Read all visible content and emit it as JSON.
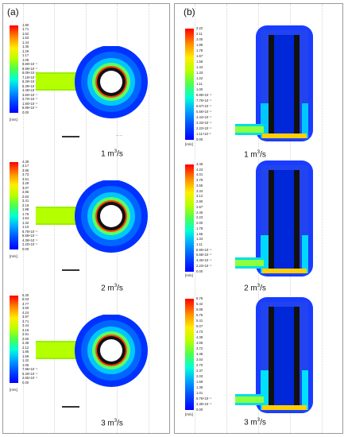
{
  "panels": {
    "a": {
      "label": "(a)",
      "cases": [
        {
          "caption_prefix": "1 m",
          "caption_exp": "3",
          "caption_suffix": "/s",
          "unit": "[m/s]",
          "ticks": [
            "1.80",
            "1.71",
            "1.62",
            "1.53",
            "1.44",
            "1.35",
            "1.26",
            "1.17",
            "1.08",
            "9.89×10⁻¹",
            "8.99×10⁻¹",
            "8.09×10⁻¹",
            "7.19×10⁻¹",
            "6.29×10⁻¹",
            "5.39×10⁻¹",
            "4.49×10⁻¹",
            "3.60×10⁻¹",
            "2.70×10⁻¹",
            "1.80×10⁻¹",
            "8.99×10⁻²",
            "0.00"
          ]
        },
        {
          "caption_prefix": "2 m",
          "caption_exp": "3",
          "caption_suffix": "/s",
          "unit": "[m/s]",
          "ticks": [
            "4.39",
            "4.17",
            "3.95",
            "3.73",
            "3.51",
            "3.29",
            "3.07",
            "2.85",
            "2.63",
            "2.41",
            "2.19",
            "1.98",
            "1.76",
            "1.54",
            "1.32",
            "1.10",
            "8.78×10⁻¹",
            "6.59×10⁻¹",
            "4.39×10⁻¹",
            "2.20×10⁻¹",
            "0.00"
          ]
        },
        {
          "caption_prefix": "3 m",
          "caption_exp": "3",
          "caption_suffix": "/s",
          "unit": "[m/s]",
          "ticks": [
            "5.30",
            "5.03",
            "4.77",
            "4.50",
            "4.24",
            "3.97",
            "3.71",
            "3.44",
            "3.18",
            "2.91",
            "2.65",
            "2.38",
            "2.12",
            "1.85",
            "1.59",
            "1.32",
            "1.06",
            "7.95×10⁻¹",
            "5.30×10⁻¹",
            "2.65×10⁻¹",
            "0.00"
          ]
        }
      ]
    },
    "b": {
      "label": "(b)",
      "cases": [
        {
          "caption_prefix": "1 m",
          "caption_exp": "3",
          "caption_suffix": "/s",
          "unit": "[m/s]",
          "ticks": [
            "2.22",
            "2.11",
            "2.00",
            "1.89",
            "1.78",
            "1.67",
            "1.56",
            "1.44",
            "1.33",
            "1.22",
            "1.11",
            "1.00",
            "8.89×10⁻¹",
            "7.78×10⁻¹",
            "6.67×10⁻¹",
            "5.56×10⁻¹",
            "4.44×10⁻¹",
            "3.33×10⁻¹",
            "2.22×10⁻¹",
            "1.11×10⁻¹",
            "0.00"
          ]
        },
        {
          "caption_prefix": "2 m",
          "caption_exp": "3",
          "caption_suffix": "/s",
          "unit": "[m/s]",
          "ticks": [
            "4.46",
            "4.23",
            "4.01",
            "3.79",
            "3.56",
            "3.34",
            "3.12",
            "2.90",
            "2.67",
            "2.45",
            "2.23",
            "2.00",
            "1.78",
            "1.56",
            "1.34",
            "1.11",
            "8.90×10⁻¹",
            "6.68×10⁻¹",
            "4.45×10⁻¹",
            "2.23×10⁻¹",
            "0.00"
          ]
        },
        {
          "caption_prefix": "3 m",
          "caption_exp": "3",
          "caption_suffix": "/s",
          "unit": "[m/s]",
          "ticks": [
            "6.76",
            "6.42",
            "6.08",
            "5.75",
            "5.41",
            "5.07",
            "4.73",
            "4.39",
            "4.06",
            "3.72",
            "3.38",
            "3.04",
            "2.70",
            "2.37",
            "2.03",
            "1.69",
            "1.35",
            "1.01",
            "6.76×10⁻¹",
            "3.38×10⁻¹",
            "0.00"
          ]
        }
      ]
    }
  }
}
